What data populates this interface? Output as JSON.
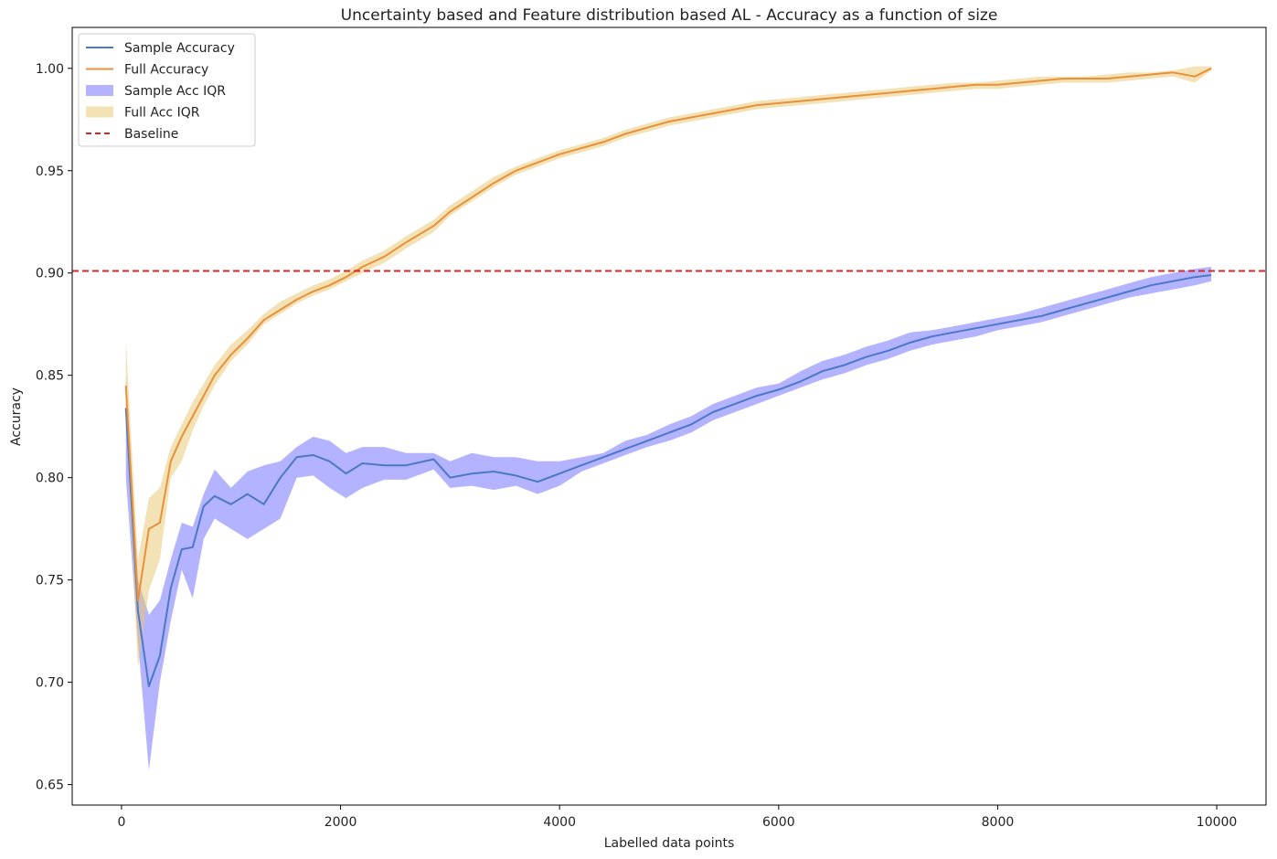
{
  "chart_data": {
    "type": "line",
    "title": "Uncertainty based and Feature distribution based AL - Accuracy as a function of size",
    "xlabel": "Labelled data points",
    "ylabel": "Accuracy",
    "xlim": [
      -450,
      10450
    ],
    "ylim": [
      0.64,
      1.02
    ],
    "xticks": [
      0,
      2000,
      4000,
      6000,
      8000,
      10000
    ],
    "xtick_labels": [
      "0",
      "2000",
      "4000",
      "6000",
      "8000",
      "10000"
    ],
    "yticks": [
      0.65,
      0.7,
      0.75,
      0.8,
      0.85,
      0.9,
      0.95,
      1.0
    ],
    "ytick_labels": [
      "0.65",
      "0.70",
      "0.75",
      "0.80",
      "0.85",
      "0.90",
      "0.95",
      "1.00"
    ],
    "grid": false,
    "legend_position": "upper-left",
    "baseline": {
      "name": "Baseline",
      "y": 0.901,
      "color": "#d62728"
    },
    "series": [
      {
        "name": "Sample Accuracy",
        "color": "#4c78c4",
        "band_name": "Sample Acc IQR",
        "band_color": "#4b4bff",
        "x": [
          40,
          150,
          250,
          350,
          450,
          550,
          650,
          750,
          850,
          1000,
          1150,
          1300,
          1450,
          1600,
          1750,
          1900,
          2050,
          2200,
          2400,
          2600,
          2850,
          3000,
          3200,
          3400,
          3600,
          3800,
          4000,
          4200,
          4400,
          4600,
          4800,
          5000,
          5200,
          5400,
          5600,
          5800,
          6000,
          6200,
          6400,
          6600,
          6800,
          7000,
          7200,
          7400,
          7600,
          7800,
          8000,
          8200,
          8400,
          8600,
          8800,
          9000,
          9200,
          9400,
          9600,
          9800,
          9950
        ],
        "y": [
          0.834,
          0.735,
          0.698,
          0.713,
          0.746,
          0.765,
          0.766,
          0.786,
          0.791,
          0.787,
          0.792,
          0.787,
          0.8,
          0.81,
          0.811,
          0.808,
          0.802,
          0.807,
          0.806,
          0.806,
          0.809,
          0.8,
          0.802,
          0.803,
          0.801,
          0.798,
          0.802,
          0.806,
          0.81,
          0.814,
          0.818,
          0.822,
          0.826,
          0.832,
          0.836,
          0.84,
          0.843,
          0.847,
          0.852,
          0.855,
          0.859,
          0.862,
          0.866,
          0.869,
          0.871,
          0.873,
          0.875,
          0.877,
          0.879,
          0.882,
          0.885,
          0.888,
          0.891,
          0.894,
          0.896,
          0.898,
          0.899
        ],
        "low": [
          0.8,
          0.72,
          0.657,
          0.7,
          0.73,
          0.755,
          0.741,
          0.77,
          0.78,
          0.775,
          0.77,
          0.775,
          0.78,
          0.8,
          0.801,
          0.795,
          0.79,
          0.795,
          0.799,
          0.799,
          0.804,
          0.795,
          0.796,
          0.794,
          0.796,
          0.792,
          0.796,
          0.803,
          0.807,
          0.811,
          0.815,
          0.818,
          0.822,
          0.828,
          0.832,
          0.836,
          0.84,
          0.844,
          0.848,
          0.851,
          0.855,
          0.858,
          0.862,
          0.865,
          0.867,
          0.869,
          0.872,
          0.874,
          0.876,
          0.879,
          0.882,
          0.885,
          0.888,
          0.89,
          0.892,
          0.894,
          0.896
        ],
        "high": [
          0.85,
          0.75,
          0.733,
          0.74,
          0.76,
          0.778,
          0.776,
          0.792,
          0.804,
          0.795,
          0.803,
          0.806,
          0.808,
          0.815,
          0.82,
          0.818,
          0.812,
          0.815,
          0.815,
          0.812,
          0.812,
          0.808,
          0.812,
          0.81,
          0.81,
          0.808,
          0.808,
          0.81,
          0.812,
          0.818,
          0.821,
          0.826,
          0.83,
          0.836,
          0.84,
          0.844,
          0.846,
          0.852,
          0.857,
          0.86,
          0.864,
          0.867,
          0.871,
          0.872,
          0.874,
          0.876,
          0.878,
          0.88,
          0.883,
          0.886,
          0.889,
          0.892,
          0.895,
          0.898,
          0.9,
          0.902,
          0.903
        ]
      },
      {
        "name": "Full Accuracy",
        "color": "#e8913a",
        "band_name": "Full Acc IQR",
        "band_color": "#e8c773",
        "x": [
          40,
          150,
          250,
          350,
          450,
          550,
          650,
          750,
          850,
          1000,
          1150,
          1300,
          1450,
          1600,
          1750,
          1900,
          2050,
          2200,
          2400,
          2600,
          2850,
          3000,
          3200,
          3400,
          3600,
          3800,
          4000,
          4200,
          4400,
          4600,
          4800,
          5000,
          5200,
          5400,
          5600,
          5800,
          6000,
          6200,
          6400,
          6600,
          6800,
          7000,
          7200,
          7400,
          7600,
          7800,
          8000,
          8200,
          8400,
          8600,
          8800,
          9000,
          9200,
          9400,
          9600,
          9800,
          9950
        ],
        "y": [
          0.845,
          0.74,
          0.775,
          0.778,
          0.808,
          0.82,
          0.83,
          0.84,
          0.85,
          0.86,
          0.868,
          0.877,
          0.882,
          0.887,
          0.891,
          0.894,
          0.898,
          0.903,
          0.908,
          0.915,
          0.923,
          0.93,
          0.937,
          0.944,
          0.95,
          0.954,
          0.958,
          0.961,
          0.964,
          0.968,
          0.971,
          0.974,
          0.976,
          0.978,
          0.98,
          0.982,
          0.983,
          0.984,
          0.985,
          0.986,
          0.987,
          0.988,
          0.989,
          0.99,
          0.991,
          0.992,
          0.992,
          0.993,
          0.994,
          0.995,
          0.995,
          0.995,
          0.996,
          0.997,
          0.998,
          0.996,
          1.0
        ],
        "low": [
          0.83,
          0.707,
          0.745,
          0.76,
          0.8,
          0.808,
          0.823,
          0.835,
          0.845,
          0.857,
          0.865,
          0.875,
          0.88,
          0.885,
          0.889,
          0.892,
          0.896,
          0.9,
          0.905,
          0.912,
          0.92,
          0.928,
          0.935,
          0.942,
          0.948,
          0.952,
          0.956,
          0.959,
          0.962,
          0.966,
          0.969,
          0.972,
          0.974,
          0.976,
          0.978,
          0.98,
          0.981,
          0.982,
          0.983,
          0.984,
          0.985,
          0.986,
          0.987,
          0.988,
          0.989,
          0.99,
          0.99,
          0.991,
          0.992,
          0.993,
          0.993,
          0.993,
          0.994,
          0.995,
          0.996,
          0.993,
          0.999
        ],
        "high": [
          0.867,
          0.76,
          0.79,
          0.795,
          0.815,
          0.826,
          0.837,
          0.846,
          0.855,
          0.865,
          0.872,
          0.88,
          0.886,
          0.89,
          0.894,
          0.897,
          0.901,
          0.906,
          0.911,
          0.918,
          0.926,
          0.933,
          0.94,
          0.947,
          0.952,
          0.956,
          0.96,
          0.963,
          0.966,
          0.97,
          0.973,
          0.976,
          0.978,
          0.98,
          0.982,
          0.984,
          0.985,
          0.986,
          0.987,
          0.988,
          0.989,
          0.99,
          0.991,
          0.992,
          0.993,
          0.993,
          0.994,
          0.995,
          0.996,
          0.996,
          0.996,
          0.997,
          0.998,
          0.998,
          0.999,
          1.001,
          1.001
        ]
      }
    ],
    "legend": [
      {
        "label": "Sample Accuracy",
        "kind": "line",
        "color": "#4c78c4"
      },
      {
        "label": "Full Accuracy",
        "kind": "line",
        "color": "#e8913a"
      },
      {
        "label": "Sample Acc IQR",
        "kind": "patch",
        "color": "#4b4bff"
      },
      {
        "label": "Full Acc IQR",
        "kind": "patch",
        "color": "#e8c773"
      },
      {
        "label": "Baseline",
        "kind": "dashed",
        "color": "#d62728"
      }
    ]
  }
}
